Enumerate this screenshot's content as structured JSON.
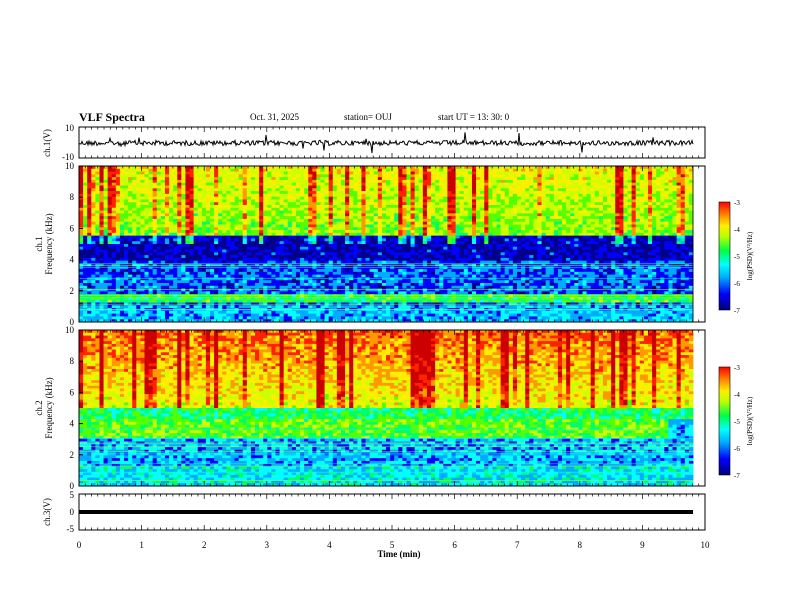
{
  "header": {
    "title": "VLF Spectra",
    "date": "Oct. 31, 2025",
    "station": "station= OUJ",
    "start_ut": "start  UT =   13: 30: 0"
  },
  "chart_data": [
    {
      "type": "line",
      "panel": "waveform-ch1",
      "ylabel": "ch.1(V)",
      "ylim": [
        -10,
        10
      ],
      "yticks": [
        "10",
        "-10"
      ],
      "xlim": [
        0,
        10
      ],
      "baseline": 0
    },
    {
      "type": "heatmap",
      "panel": "spectrogram-ch1",
      "ylabel_channel": "ch.1",
      "ylabel": "Frequency  (kHz)",
      "ylim": [
        0,
        10
      ],
      "yticks": [
        "0",
        "2",
        "4",
        "6",
        "8",
        "10"
      ],
      "xlim": [
        0,
        10
      ],
      "colorbar": {
        "label": "log(PSD)(V²/Hz)",
        "range": [
          -7,
          -3
        ],
        "ticks": [
          "-3",
          "-4",
          "-5",
          "-6",
          "-7"
        ]
      },
      "notes": "broadband activity 5.5-10 kHz; dark (low power) band 4-5.5 kHz; horizontal lines below 4 kHz"
    },
    {
      "type": "heatmap",
      "panel": "spectrogram-ch2",
      "ylabel_channel": "ch.2",
      "ylabel": "Frequency  (kHz)",
      "ylim": [
        0,
        10
      ],
      "yticks": [
        "0",
        "2",
        "4",
        "6",
        "8",
        "10"
      ],
      "xlim": [
        0,
        10
      ],
      "colorbar": {
        "label": "log(PSD)(V²/Hz)",
        "range": [
          -7,
          -3
        ],
        "ticks": [
          "-3",
          "-4",
          "-5",
          "-6",
          "-7"
        ]
      },
      "notes": "stronger power 5-10 kHz (red/yellow); green band ~3-4 kHz until ~9.4 min"
    },
    {
      "type": "line",
      "panel": "waveform-ch3",
      "ylabel": "ch.3(V)",
      "ylim": [
        -5,
        5
      ],
      "yticks": [
        "5",
        "0",
        "-5"
      ],
      "xlim": [
        0,
        10
      ],
      "baseline": 0
    }
  ],
  "xaxis": {
    "label": "Time  (min)",
    "ticks": [
      "0",
      "1",
      "2",
      "3",
      "4",
      "5",
      "6",
      "7",
      "8",
      "9",
      "10"
    ]
  },
  "colors": {
    "scale": [
      "#00008b",
      "#0000ff",
      "#00aaff",
      "#00ffff",
      "#00ff66",
      "#55ff00",
      "#ccff00",
      "#ffee00",
      "#ff9900",
      "#ff2200",
      "#cc0000"
    ]
  }
}
